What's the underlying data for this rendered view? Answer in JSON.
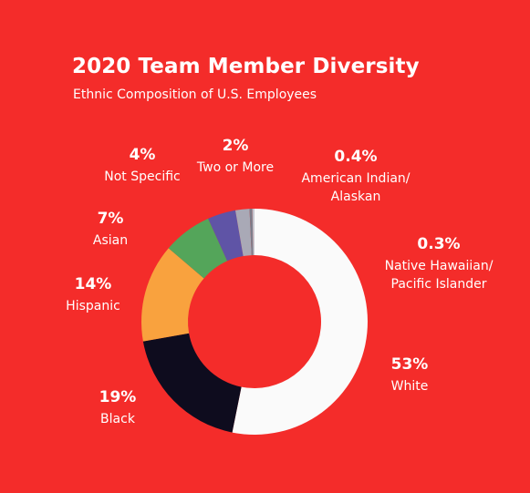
{
  "title": "2020 Team Member Diversity",
  "subtitle": "Ethnic Composition of U.S. Employees",
  "colors": {
    "background": "#f42c2a",
    "text": "#ffffff"
  },
  "chart_data": {
    "type": "pie",
    "title": "2020 Team Member Diversity",
    "subtitle": "Ethnic Composition of U.S. Employees",
    "donut": true,
    "start_angle_deg": 0,
    "direction": "clockwise",
    "slices": [
      {
        "name": "White",
        "value": 53,
        "label": "53%",
        "name_lines": [
          "White"
        ],
        "color": "#fafafa"
      },
      {
        "name": "Black",
        "value": 19,
        "label": "19%",
        "name_lines": [
          "Black"
        ],
        "color": "#0e0c1e"
      },
      {
        "name": "Hispanic",
        "value": 14,
        "label": "14%",
        "name_lines": [
          "Hispanic"
        ],
        "color": "#f9a23e"
      },
      {
        "name": "Asian",
        "value": 7,
        "label": "7%",
        "name_lines": [
          "Asian"
        ],
        "color": "#54a55a"
      },
      {
        "name": "Not Specific",
        "value": 4,
        "label": "4%",
        "name_lines": [
          "Not Specific"
        ],
        "color": "#5f54a6"
      },
      {
        "name": "Two or More",
        "value": 2,
        "label": "2%",
        "name_lines": [
          "Two or More"
        ],
        "color": "#a9a9b6"
      },
      {
        "name": "American Indian/ Alaskan",
        "value": 0.4,
        "label": "0.4%",
        "name_lines": [
          "American Indian/",
          "Alaskan"
        ],
        "color": "#7d7d8a"
      },
      {
        "name": "Native Hawaiian/ Pacific Islander",
        "value": 0.3,
        "label": "0.3%",
        "name_lines": [
          "Native Hawaiian/",
          "Pacific Islander"
        ],
        "color": "#c8c8d0"
      }
    ]
  }
}
